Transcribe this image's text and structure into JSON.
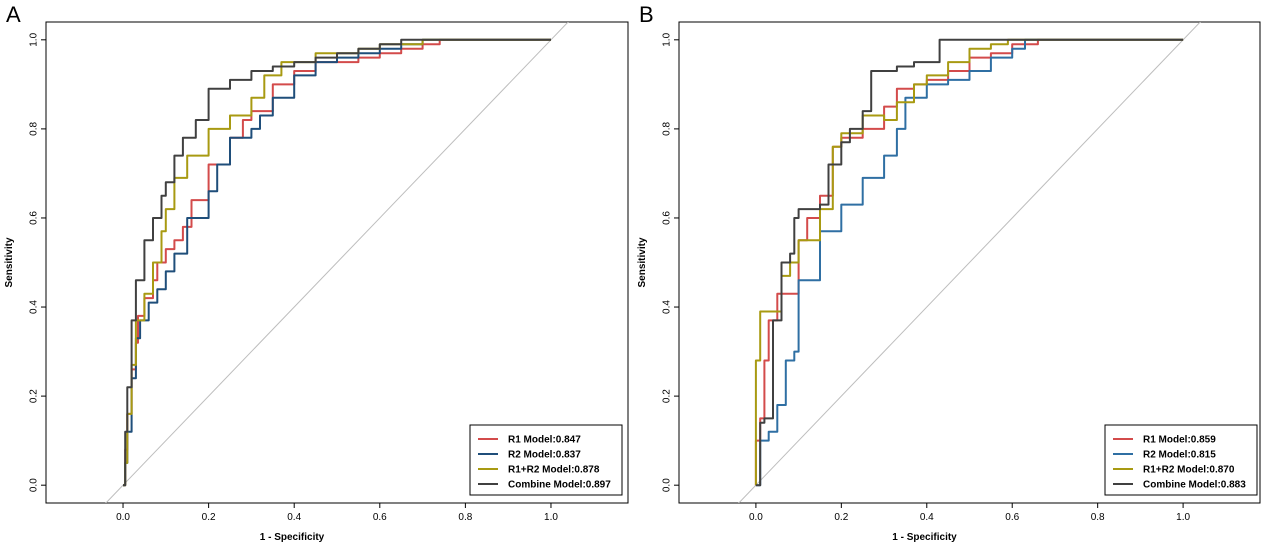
{
  "panels": [
    {
      "letter": "A",
      "chart_data": {
        "type": "line",
        "xlabel": "1 - Specificity",
        "ylabel": "Sensitivity",
        "xlim": [
          -0.18,
          1.18
        ],
        "ylim": [
          -0.04,
          1.04
        ],
        "xticks": [
          0.0,
          0.2,
          0.4,
          0.6,
          0.8,
          1.0
        ],
        "xtick_labels": [
          "0.0",
          "0.2",
          "0.4",
          "0.6",
          "0.8",
          "1.0"
        ],
        "yticks": [
          0.0,
          0.2,
          0.4,
          0.6,
          0.8,
          1.0
        ],
        "ytick_labels": [
          "0.0",
          "0.2",
          "0.4",
          "0.6",
          "0.8",
          "1.0"
        ],
        "reference_line": [
          [
            -0.05,
            -0.05
          ],
          [
            1.18,
            1.18
          ]
        ],
        "legend_position": "bottom-right",
        "series": [
          {
            "name": "R1 Model:0.847",
            "color": "#d34b4b",
            "points": [
              [
                0,
                0
              ],
              [
                0.005,
                0.08
              ],
              [
                0.01,
                0.16
              ],
              [
                0.02,
                0.26
              ],
              [
                0.03,
                0.32
              ],
              [
                0.035,
                0.38
              ],
              [
                0.05,
                0.42
              ],
              [
                0.07,
                0.46
              ],
              [
                0.08,
                0.5
              ],
              [
                0.1,
                0.53
              ],
              [
                0.12,
                0.55
              ],
              [
                0.14,
                0.58
              ],
              [
                0.16,
                0.64
              ],
              [
                0.2,
                0.72
              ],
              [
                0.25,
                0.78
              ],
              [
                0.28,
                0.82
              ],
              [
                0.3,
                0.84
              ],
              [
                0.35,
                0.9
              ],
              [
                0.4,
                0.93
              ],
              [
                0.45,
                0.95
              ],
              [
                0.5,
                0.95
              ],
              [
                0.55,
                0.96
              ],
              [
                0.6,
                0.97
              ],
              [
                0.65,
                0.98
              ],
              [
                0.7,
                0.99
              ],
              [
                0.74,
                1.0
              ],
              [
                1.0,
                1.0
              ]
            ]
          },
          {
            "name": "R2 Model:0.837",
            "color": "#1f4e7a",
            "points": [
              [
                0,
                0
              ],
              [
                0.005,
                0.05
              ],
              [
                0.01,
                0.12
              ],
              [
                0.02,
                0.24
              ],
              [
                0.03,
                0.33
              ],
              [
                0.04,
                0.37
              ],
              [
                0.06,
                0.41
              ],
              [
                0.08,
                0.44
              ],
              [
                0.1,
                0.48
              ],
              [
                0.12,
                0.52
              ],
              [
                0.15,
                0.6
              ],
              [
                0.2,
                0.66
              ],
              [
                0.22,
                0.72
              ],
              [
                0.25,
                0.78
              ],
              [
                0.3,
                0.8
              ],
              [
                0.32,
                0.83
              ],
              [
                0.35,
                0.87
              ],
              [
                0.4,
                0.92
              ],
              [
                0.45,
                0.95
              ],
              [
                0.5,
                0.96
              ],
              [
                0.55,
                0.97
              ],
              [
                0.6,
                0.98
              ],
              [
                0.65,
                0.99
              ],
              [
                0.7,
                1.0
              ],
              [
                1.0,
                1.0
              ]
            ]
          },
          {
            "name": "R1+R2 Model:0.878",
            "color": "#a89a12",
            "points": [
              [
                0,
                0
              ],
              [
                0.005,
                0.05
              ],
              [
                0.01,
                0.16
              ],
              [
                0.02,
                0.27
              ],
              [
                0.03,
                0.37
              ],
              [
                0.05,
                0.43
              ],
              [
                0.07,
                0.5
              ],
              [
                0.09,
                0.57
              ],
              [
                0.1,
                0.62
              ],
              [
                0.12,
                0.69
              ],
              [
                0.15,
                0.74
              ],
              [
                0.2,
                0.8
              ],
              [
                0.25,
                0.83
              ],
              [
                0.3,
                0.87
              ],
              [
                0.33,
                0.92
              ],
              [
                0.37,
                0.95
              ],
              [
                0.4,
                0.95
              ],
              [
                0.45,
                0.97
              ],
              [
                0.5,
                0.97
              ],
              [
                0.55,
                0.98
              ],
              [
                0.6,
                0.99
              ],
              [
                0.65,
                0.99
              ],
              [
                0.7,
                1.0
              ],
              [
                0.78,
                1.0
              ],
              [
                1.0,
                1.0
              ]
            ]
          },
          {
            "name": "Combine Model:0.897",
            "color": "#404040",
            "points": [
              [
                0,
                0
              ],
              [
                0.005,
                0.12
              ],
              [
                0.01,
                0.22
              ],
              [
                0.02,
                0.37
              ],
              [
                0.03,
                0.46
              ],
              [
                0.05,
                0.55
              ],
              [
                0.07,
                0.6
              ],
              [
                0.09,
                0.65
              ],
              [
                0.1,
                0.68
              ],
              [
                0.12,
                0.74
              ],
              [
                0.14,
                0.78
              ],
              [
                0.17,
                0.82
              ],
              [
                0.2,
                0.89
              ],
              [
                0.25,
                0.91
              ],
              [
                0.3,
                0.93
              ],
              [
                0.35,
                0.94
              ],
              [
                0.4,
                0.95
              ],
              [
                0.45,
                0.96
              ],
              [
                0.5,
                0.97
              ],
              [
                0.55,
                0.98
              ],
              [
                0.6,
                0.99
              ],
              [
                0.65,
                1.0
              ],
              [
                1.0,
                1.0
              ]
            ]
          }
        ]
      }
    },
    {
      "letter": "B",
      "chart_data": {
        "type": "line",
        "xlabel": "1 - Specificity",
        "ylabel": "Sensitivity",
        "xlim": [
          -0.18,
          1.18
        ],
        "ylim": [
          -0.04,
          1.04
        ],
        "xticks": [
          0.0,
          0.2,
          0.4,
          0.6,
          0.8,
          1.0
        ],
        "xtick_labels": [
          "0.0",
          "0.2",
          "0.4",
          "0.6",
          "0.8",
          "1.0"
        ],
        "yticks": [
          0.0,
          0.2,
          0.4,
          0.6,
          0.8,
          1.0
        ],
        "ytick_labels": [
          "0.0",
          "0.2",
          "0.4",
          "0.6",
          "0.8",
          "1.0"
        ],
        "reference_line": [
          [
            -0.05,
            -0.05
          ],
          [
            1.18,
            1.18
          ]
        ],
        "legend_position": "bottom-right",
        "series": [
          {
            "name": "R1 Model:0.859",
            "color": "#d34b4b",
            "points": [
              [
                0,
                0
              ],
              [
                0,
                0.1
              ],
              [
                0.01,
                0.15
              ],
              [
                0.02,
                0.28
              ],
              [
                0.03,
                0.37
              ],
              [
                0.05,
                0.43
              ],
              [
                0.1,
                0.43
              ],
              [
                0.1,
                0.55
              ],
              [
                0.12,
                0.6
              ],
              [
                0.15,
                0.65
              ],
              [
                0.18,
                0.76
              ],
              [
                0.2,
                0.78
              ],
              [
                0.25,
                0.8
              ],
              [
                0.3,
                0.85
              ],
              [
                0.33,
                0.89
              ],
              [
                0.37,
                0.9
              ],
              [
                0.4,
                0.91
              ],
              [
                0.45,
                0.93
              ],
              [
                0.5,
                0.96
              ],
              [
                0.55,
                0.97
              ],
              [
                0.6,
                0.99
              ],
              [
                0.66,
                1.0
              ],
              [
                1.0,
                1.0
              ]
            ]
          },
          {
            "name": "R2 Model:0.815",
            "color": "#2f6fa3",
            "points": [
              [
                0,
                0
              ],
              [
                0.01,
                0.1
              ],
              [
                0.03,
                0.12
              ],
              [
                0.05,
                0.18
              ],
              [
                0.07,
                0.28
              ],
              [
                0.09,
                0.3
              ],
              [
                0.1,
                0.46
              ],
              [
                0.15,
                0.46
              ],
              [
                0.15,
                0.57
              ],
              [
                0.2,
                0.63
              ],
              [
                0.25,
                0.69
              ],
              [
                0.3,
                0.74
              ],
              [
                0.33,
                0.8
              ],
              [
                0.35,
                0.87
              ],
              [
                0.4,
                0.9
              ],
              [
                0.45,
                0.91
              ],
              [
                0.5,
                0.93
              ],
              [
                0.55,
                0.96
              ],
              [
                0.6,
                0.98
              ],
              [
                0.63,
                1.0
              ],
              [
                1.0,
                1.0
              ]
            ]
          },
          {
            "name": "R1+R2 Model:0.870",
            "color": "#a89a12",
            "points": [
              [
                0,
                0
              ],
              [
                0,
                0.28
              ],
              [
                0.01,
                0.39
              ],
              [
                0.05,
                0.39
              ],
              [
                0.06,
                0.47
              ],
              [
                0.08,
                0.5
              ],
              [
                0.1,
                0.55
              ],
              [
                0.15,
                0.62
              ],
              [
                0.18,
                0.76
              ],
              [
                0.2,
                0.79
              ],
              [
                0.25,
                0.83
              ],
              [
                0.3,
                0.82
              ],
              [
                0.33,
                0.86
              ],
              [
                0.37,
                0.9
              ],
              [
                0.4,
                0.92
              ],
              [
                0.45,
                0.95
              ],
              [
                0.5,
                0.98
              ],
              [
                0.55,
                0.99
              ],
              [
                0.59,
                1.0
              ],
              [
                1.0,
                1.0
              ]
            ]
          },
          {
            "name": "Combine Model:0.883",
            "color": "#404040",
            "points": [
              [
                0,
                0
              ],
              [
                0.01,
                0.06
              ],
              [
                0.01,
                0.14
              ],
              [
                0.02,
                0.15
              ],
              [
                0.04,
                0.37
              ],
              [
                0.06,
                0.5
              ],
              [
                0.08,
                0.52
              ],
              [
                0.09,
                0.6
              ],
              [
                0.1,
                0.62
              ],
              [
                0.15,
                0.63
              ],
              [
                0.17,
                0.72
              ],
              [
                0.2,
                0.77
              ],
              [
                0.22,
                0.8
              ],
              [
                0.25,
                0.84
              ],
              [
                0.27,
                0.93
              ],
              [
                0.3,
                0.93
              ],
              [
                0.33,
                0.94
              ],
              [
                0.37,
                0.95
              ],
              [
                0.4,
                0.95
              ],
              [
                0.43,
                1.0
              ],
              [
                1.0,
                1.0
              ]
            ]
          }
        ]
      }
    }
  ]
}
